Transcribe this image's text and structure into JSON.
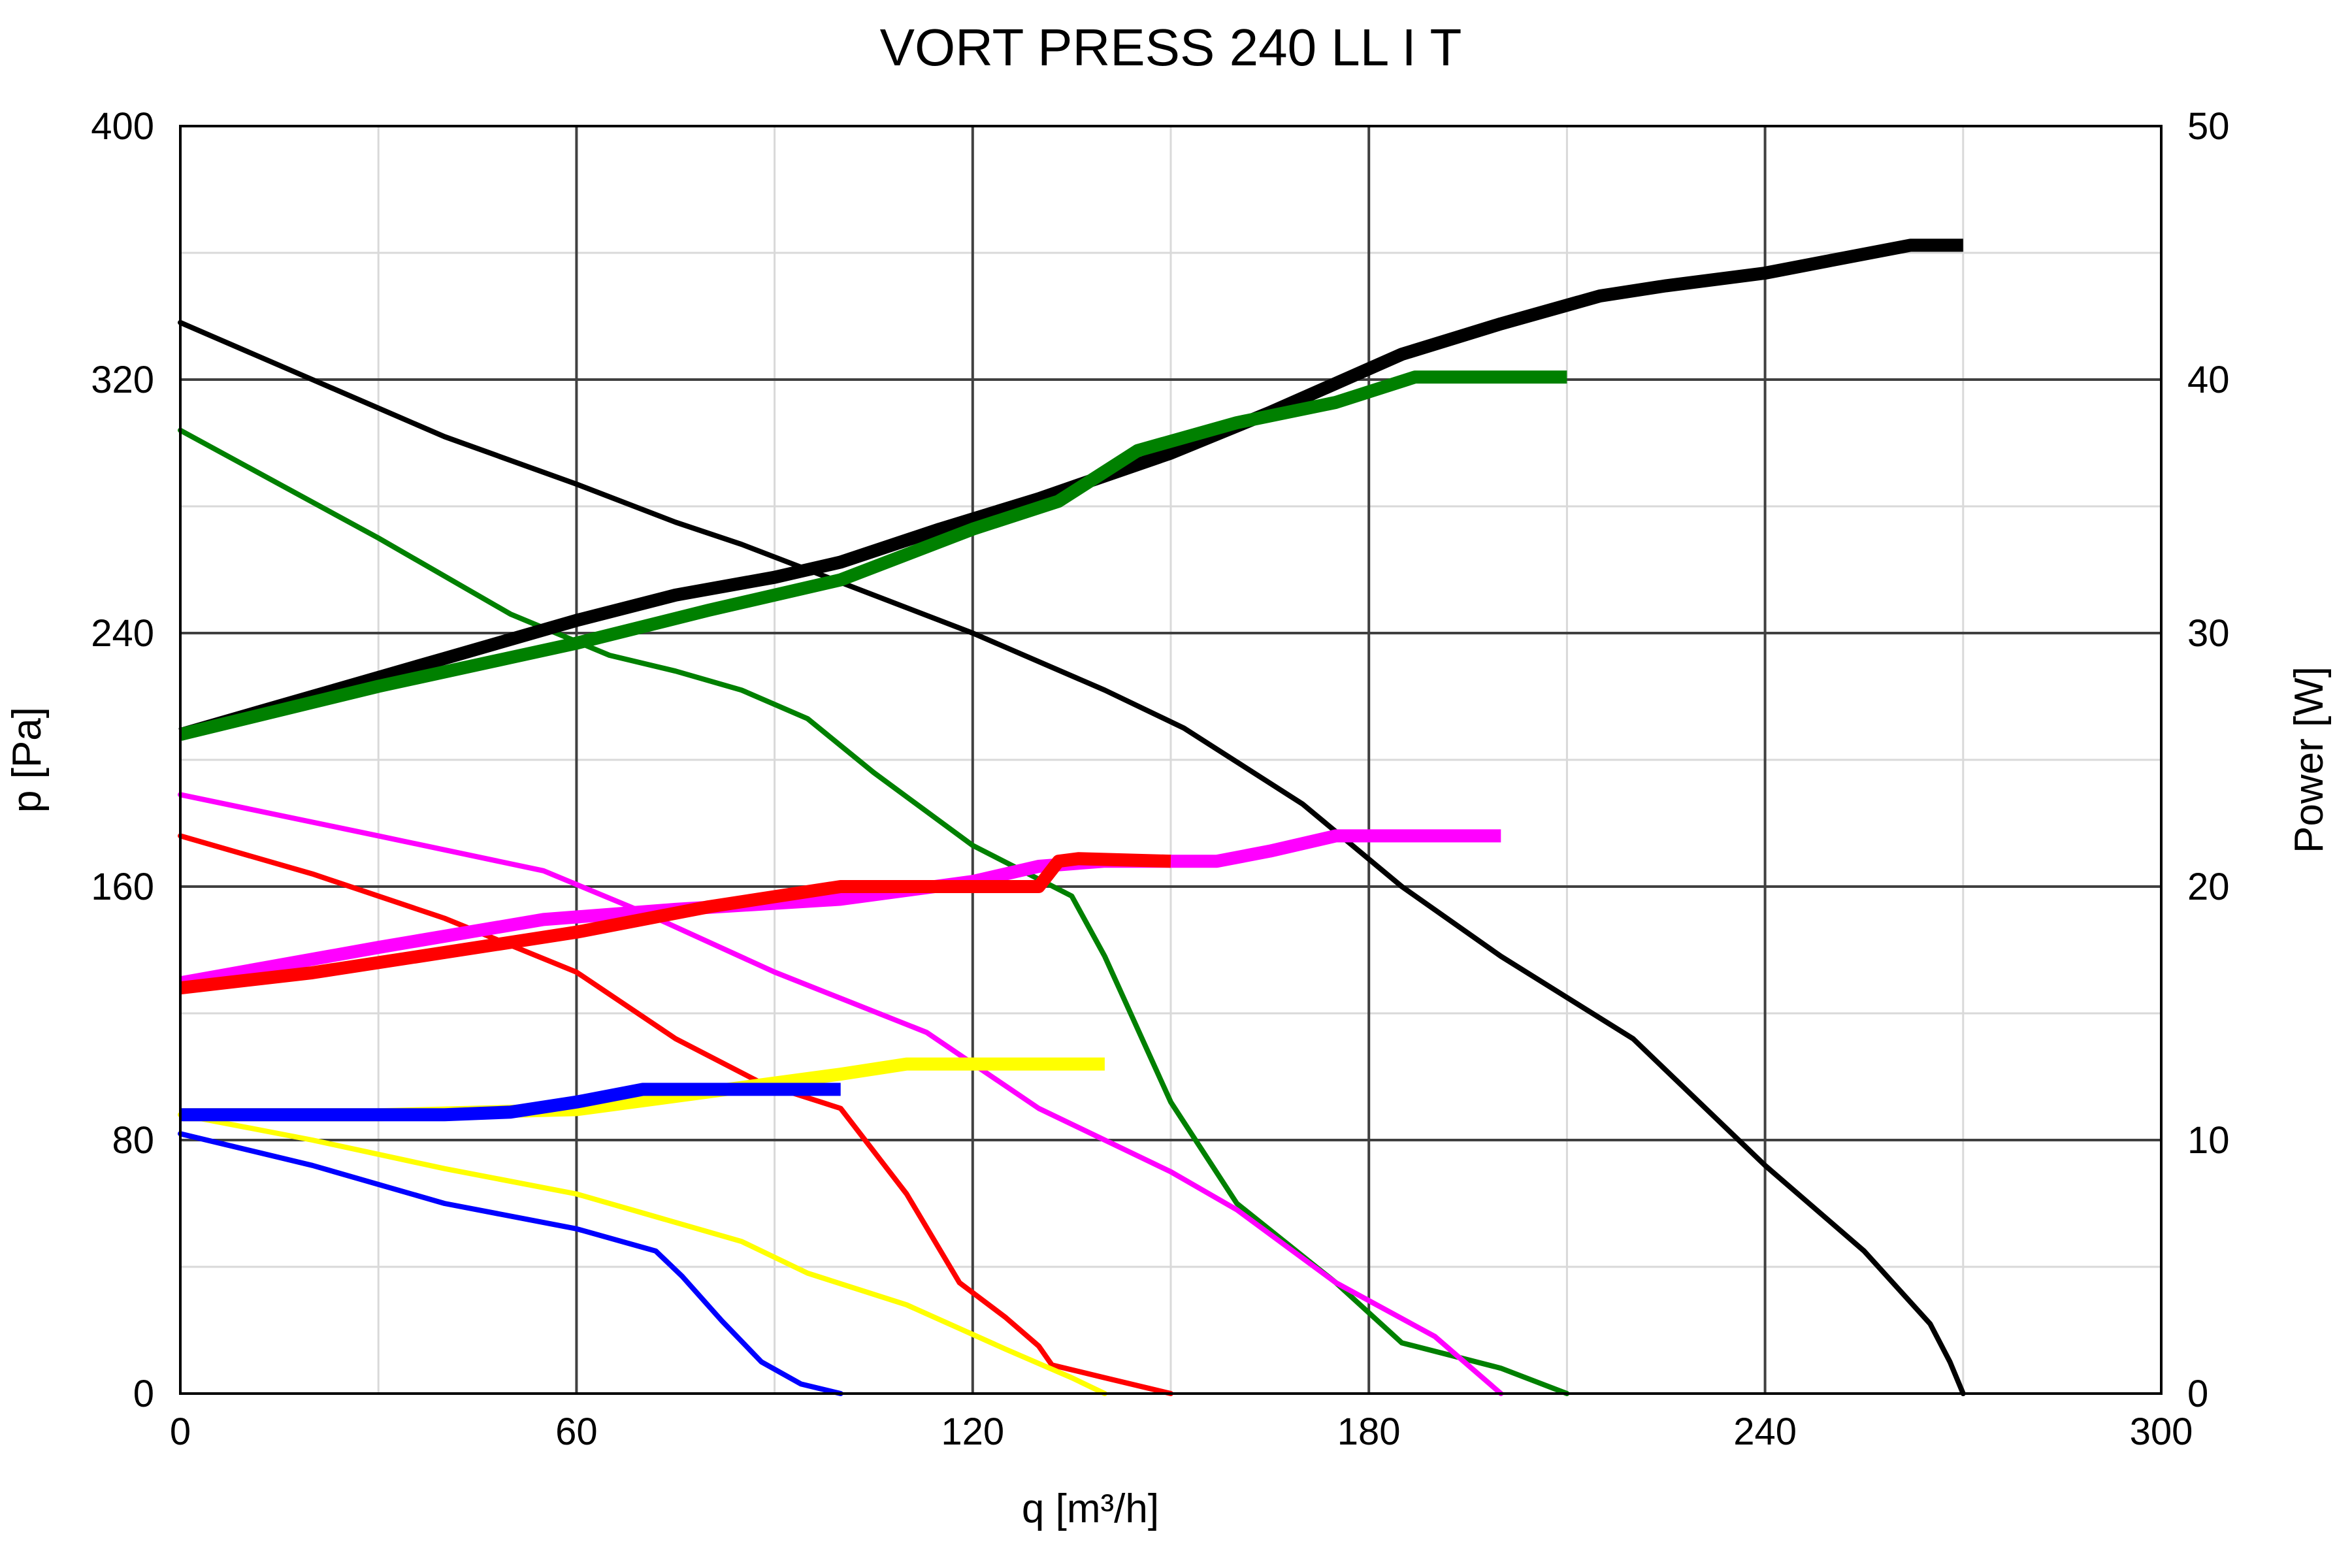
{
  "chart_data": {
    "type": "line",
    "title": "VORT PRESS 240 LL I T",
    "xlabel": "q [m³/h]",
    "ylabel": "p [Pa]",
    "y2label": "Power [W]",
    "xlim": [
      0,
      300
    ],
    "ylim": [
      0,
      400
    ],
    "y2lim": [
      0,
      50
    ],
    "xticks": [
      "0",
      "60",
      "120",
      "180",
      "240",
      "300"
    ],
    "yticks": [
      "0",
      "80",
      "160",
      "240",
      "320",
      "400"
    ],
    "y2ticks": [
      "0",
      "10",
      "20",
      "30",
      "40",
      "50"
    ],
    "grid": true,
    "series": [
      {
        "kind": "pressure",
        "color": "#000000",
        "x": [
          0,
          20,
          40,
          60,
          75,
          85,
          100,
          120,
          140,
          152,
          170,
          185,
          200,
          220,
          240,
          255,
          265,
          268,
          270
        ],
        "y": [
          338,
          320,
          302,
          287,
          275,
          268,
          256,
          240,
          222,
          210,
          186,
          160,
          138,
          112,
          72,
          45,
          22,
          10,
          0
        ]
      },
      {
        "kind": "pressure",
        "color": "#008000",
        "x": [
          0,
          30,
          50,
          65,
          75,
          85,
          95,
          105,
          120,
          135,
          140,
          150,
          160,
          175,
          185,
          200,
          210
        ],
        "y": [
          304,
          270,
          246,
          233,
          228,
          222,
          213,
          196,
          173,
          157,
          138,
          92,
          60,
          35,
          16,
          8,
          0
        ]
      },
      {
        "kind": "pressure",
        "color": "#ff00ff",
        "x": [
          0,
          30,
          55,
          70,
          90,
          113,
          130,
          150,
          160,
          175,
          190,
          200
        ],
        "y": [
          189,
          176,
          165,
          152,
          133,
          114,
          90,
          70,
          58,
          35,
          18,
          0
        ]
      },
      {
        "kind": "pressure",
        "color": "#ff0000",
        "x": [
          0,
          20,
          40,
          60,
          75,
          88,
          100,
          110,
          118,
          125,
          130,
          132,
          140,
          150
        ],
        "y": [
          176,
          164,
          150,
          133,
          112,
          98,
          90,
          63,
          35,
          24,
          15,
          9,
          5,
          0
        ]
      },
      {
        "kind": "pressure",
        "color": "#ffff00",
        "x": [
          0,
          20,
          40,
          60,
          70,
          85,
          95,
          110,
          125,
          135,
          140
        ],
        "y": [
          88,
          80,
          71,
          63,
          57,
          48,
          38,
          28,
          14,
          5,
          0
        ]
      },
      {
        "kind": "pressure",
        "color": "#0000ff",
        "x": [
          0,
          20,
          40,
          60,
          72,
          76,
          82,
          88,
          94,
          100
        ],
        "y": [
          82,
          72,
          60,
          52,
          45,
          37,
          23,
          10,
          3,
          0
        ]
      },
      {
        "kind": "power",
        "color": "#000000",
        "x": [
          0,
          20,
          40,
          60,
          75,
          90,
          100,
          115,
          130,
          140,
          150,
          165,
          185,
          200,
          215,
          225,
          240,
          250,
          262,
          270
        ],
        "y2": [
          26,
          27.5,
          29,
          30.5,
          31.5,
          32.2,
          32.8,
          34.1,
          35.3,
          36.2,
          37.1,
          38.7,
          41.0,
          42.2,
          43.3,
          43.7,
          44.2,
          44.7,
          45.3,
          45.3
        ]
      },
      {
        "kind": "power",
        "color": "#008000",
        "x": [
          0,
          30,
          60,
          80,
          100,
          120,
          133,
          145,
          160,
          175,
          187,
          210
        ],
        "y2": [
          26,
          27.9,
          29.6,
          30.9,
          32.1,
          34.1,
          35.2,
          37.2,
          38.3,
          39.1,
          40.1,
          40.1
        ]
      },
      {
        "kind": "power",
        "color": "#ff00ff",
        "x": [
          0,
          30,
          55,
          75,
          100,
          120,
          130,
          140,
          150,
          157,
          165,
          175,
          200
        ],
        "y2": [
          16.2,
          17.6,
          18.7,
          19.1,
          19.5,
          20.2,
          20.8,
          21.0,
          21.0,
          21.0,
          21.4,
          22.0,
          22.0
        ]
      },
      {
        "kind": "power",
        "color": "#ff0000",
        "x": [
          0,
          20,
          40,
          60,
          80,
          100,
          120,
          130,
          133,
          136,
          150
        ],
        "y2": [
          16.0,
          16.6,
          17.4,
          18.2,
          19.2,
          20.0,
          20.0,
          20.0,
          21.0,
          21.1,
          21.0
        ]
      },
      {
        "kind": "power",
        "color": "#ffff00",
        "x": [
          0,
          30,
          60,
          80,
          100,
          110,
          125,
          140
        ],
        "y2": [
          11.0,
          11.0,
          11.2,
          11.9,
          12.6,
          13.0,
          13.0,
          13.0
        ]
      },
      {
        "kind": "power",
        "color": "#0000ff",
        "x": [
          0,
          20,
          40,
          50,
          60,
          70,
          80,
          100
        ],
        "y2": [
          11.0,
          11.0,
          11.0,
          11.1,
          11.5,
          12.0,
          12.0,
          12.0
        ]
      }
    ]
  }
}
